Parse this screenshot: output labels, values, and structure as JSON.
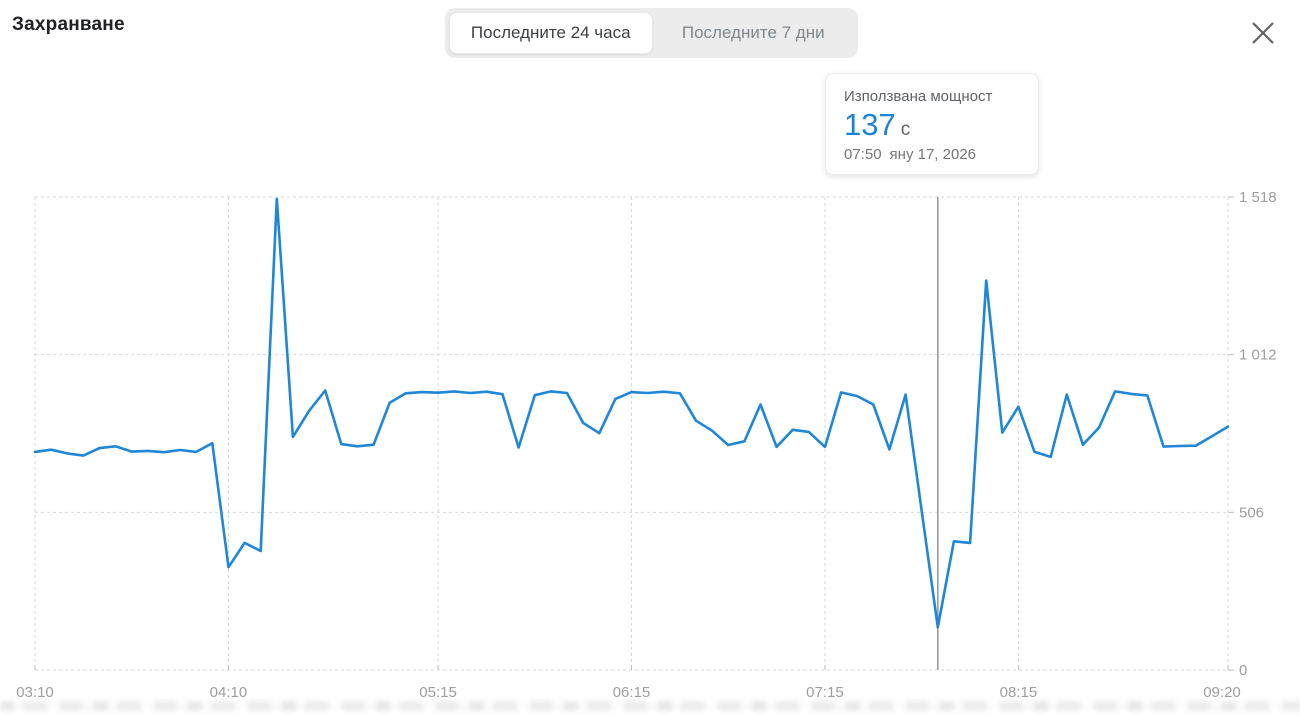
{
  "header": {
    "title": "Захранване",
    "tabs": [
      {
        "label": "Последните 24 часа",
        "active": true
      },
      {
        "label": "Последните 7 дни",
        "active": false
      }
    ]
  },
  "tooltip": {
    "title": "Използвана мощност",
    "value": "137",
    "unit": "с",
    "time": "07:50",
    "date": "яну 17, 2026"
  },
  "colors": {
    "line": "#1f86d8",
    "value_accent": "#1a84d8",
    "grid": "#d7d7d7",
    "tick_stub": "#bdbdbd",
    "axis_label": "#9e9e9e",
    "cursor_line": "#9b9b9b"
  },
  "chart_data": {
    "type": "line",
    "title": "Захранване",
    "series_name": "Използвана мощност",
    "unit": "с",
    "x_range": [
      "03:10",
      "09:20"
    ],
    "ylim": [
      0,
      1518
    ],
    "grid": "dashed",
    "axis_side": "right",
    "x_ticks": [
      "03:10",
      "04:10",
      "05:15",
      "06:15",
      "07:15",
      "08:15",
      "09:20"
    ],
    "y_ticks": [
      0,
      506,
      1012,
      1518
    ],
    "y_tick_labels": [
      "0",
      "506",
      "1 012",
      "1 518"
    ],
    "cursor": {
      "t": "07:50",
      "v": 137
    },
    "points": [
      [
        "03:10",
        700
      ],
      [
        "03:15",
        707
      ],
      [
        "03:20",
        695
      ],
      [
        "03:25",
        688
      ],
      [
        "03:30",
        712
      ],
      [
        "03:35",
        718
      ],
      [
        "03:40",
        701
      ],
      [
        "03:45",
        703
      ],
      [
        "03:50",
        699
      ],
      [
        "03:55",
        706
      ],
      [
        "04:00",
        700
      ],
      [
        "04:05",
        728
      ],
      [
        "04:10",
        330
      ],
      [
        "04:15",
        408
      ],
      [
        "04:20",
        382
      ],
      [
        "04:25",
        1512
      ],
      [
        "04:30",
        748
      ],
      [
        "04:35",
        832
      ],
      [
        "04:40",
        897
      ],
      [
        "04:45",
        725
      ],
      [
        "04:50",
        718
      ],
      [
        "04:55",
        723
      ],
      [
        "05:00",
        858
      ],
      [
        "05:05",
        888
      ],
      [
        "05:10",
        892
      ],
      [
        "05:15",
        890
      ],
      [
        "05:20",
        894
      ],
      [
        "05:25",
        889
      ],
      [
        "05:30",
        893
      ],
      [
        "05:35",
        885
      ],
      [
        "05:40",
        714
      ],
      [
        "05:45",
        882
      ],
      [
        "05:50",
        894
      ],
      [
        "05:55",
        889
      ],
      [
        "06:00",
        793
      ],
      [
        "06:05",
        760
      ],
      [
        "06:10",
        870
      ],
      [
        "06:15",
        892
      ],
      [
        "06:20",
        889
      ],
      [
        "06:25",
        893
      ],
      [
        "06:30",
        888
      ],
      [
        "06:35",
        800
      ],
      [
        "06:40",
        768
      ],
      [
        "06:45",
        722
      ],
      [
        "06:50",
        734
      ],
      [
        "06:55",
        852
      ],
      [
        "07:00",
        716
      ],
      [
        "07:05",
        771
      ],
      [
        "07:10",
        764
      ],
      [
        "07:15",
        716
      ],
      [
        "07:20",
        891
      ],
      [
        "07:25",
        879
      ],
      [
        "07:30",
        852
      ],
      [
        "07:35",
        708
      ],
      [
        "07:40",
        884
      ],
      [
        "07:50",
        137
      ],
      [
        "07:55",
        413
      ],
      [
        "08:00",
        408
      ],
      [
        "08:05",
        1250
      ],
      [
        "08:10",
        762
      ],
      [
        "08:15",
        845
      ],
      [
        "08:20",
        700
      ],
      [
        "08:25",
        684
      ],
      [
        "08:30",
        884
      ],
      [
        "08:35",
        723
      ],
      [
        "08:40",
        778
      ],
      [
        "08:45",
        894
      ],
      [
        "08:50",
        886
      ],
      [
        "08:55",
        881
      ],
      [
        "09:00",
        717
      ],
      [
        "09:05",
        719
      ],
      [
        "09:10",
        720
      ],
      [
        "09:15",
        750
      ],
      [
        "09:20",
        781
      ]
    ]
  }
}
